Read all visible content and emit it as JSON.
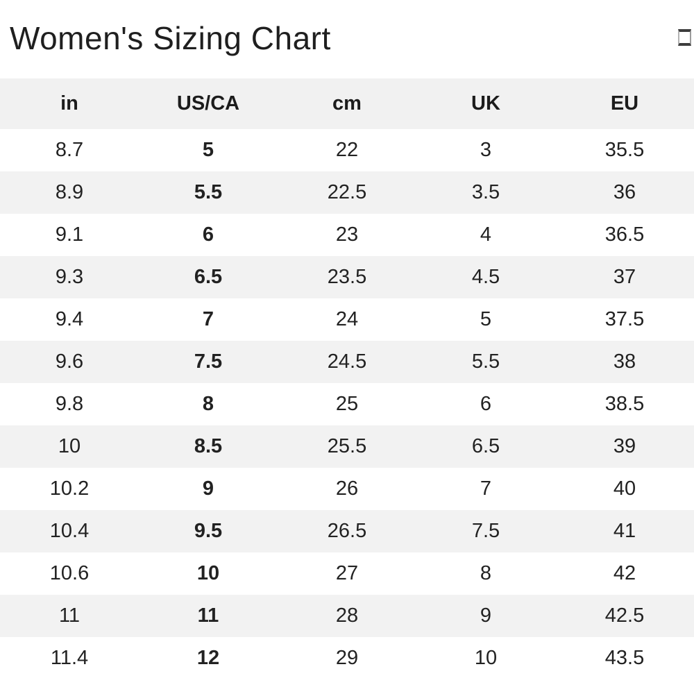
{
  "page": {
    "title": "Women's Sizing Chart",
    "header_icon": "box-glyph-icon"
  },
  "chart_data": {
    "type": "table",
    "title": "Women's Sizing Chart",
    "columns": [
      "in",
      "US/CA",
      "cm",
      "UK",
      "EU"
    ],
    "rows": [
      [
        "8.7",
        "5",
        "22",
        "3",
        "35.5"
      ],
      [
        "8.9",
        "5.5",
        "22.5",
        "3.5",
        "36"
      ],
      [
        "9.1",
        "6",
        "23",
        "4",
        "36.5"
      ],
      [
        "9.3",
        "6.5",
        "23.5",
        "4.5",
        "37"
      ],
      [
        "9.4",
        "7",
        "24",
        "5",
        "37.5"
      ],
      [
        "9.6",
        "7.5",
        "24.5",
        "5.5",
        "38"
      ],
      [
        "9.8",
        "8",
        "25",
        "6",
        "38.5"
      ],
      [
        "10",
        "8.5",
        "25.5",
        "6.5",
        "39"
      ],
      [
        "10.2",
        "9",
        "26",
        "7",
        "40"
      ],
      [
        "10.4",
        "9.5",
        "26.5",
        "7.5",
        "41"
      ],
      [
        "10.6",
        "10",
        "27",
        "8",
        "42"
      ],
      [
        "11",
        "11",
        "28",
        "9",
        "42.5"
      ],
      [
        "11.4",
        "12",
        "29",
        "10",
        "43.5"
      ]
    ],
    "layout": {
      "bold_column": "US/CA",
      "header_background": "#f1f1f1",
      "stripe_background": "#f2f2f2",
      "text_color": "#222222",
      "zebra_striping": true,
      "grid_lines": false
    }
  }
}
